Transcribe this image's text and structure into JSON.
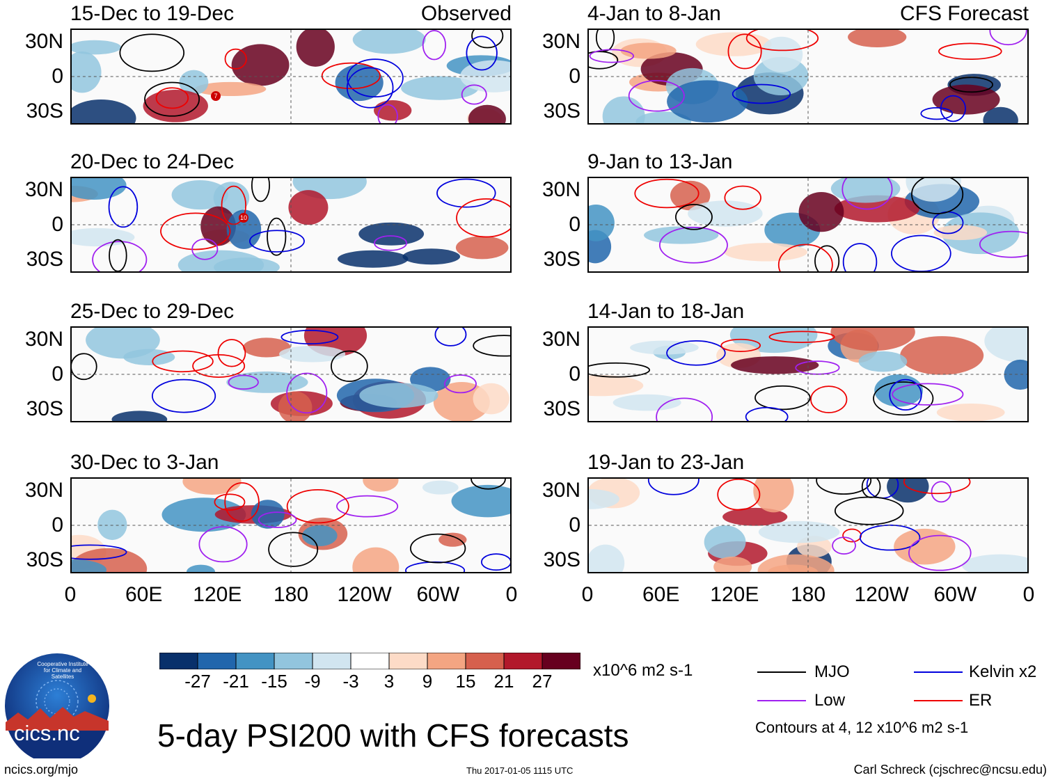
{
  "chart_data": {
    "type": "heatmap",
    "title": "5-day PSI200 with CFS forecasts",
    "variable": "PSI200",
    "colorbar": {
      "units": "x10^6 m2 s-1",
      "ticks": [
        "-27",
        "-21",
        "-15",
        "-9",
        "-3",
        "3",
        "9",
        "15",
        "21",
        "27"
      ],
      "colors": [
        "#08306b",
        "#2166ac",
        "#4393c3",
        "#92c5de",
        "#d1e5f0",
        "#ffffff",
        "#fddbc7",
        "#f4a582",
        "#d6604d",
        "#b2182b",
        "#67001f"
      ]
    },
    "x_axis": {
      "ticks": [
        "0",
        "60E",
        "120E",
        "180",
        "120W",
        "60W",
        "0"
      ]
    },
    "y_axis": {
      "ticks": [
        "30N",
        "0",
        "30S"
      ]
    },
    "columns": [
      "Observed",
      "CFS Forecast"
    ],
    "panels": [
      {
        "id": "obs-1",
        "title": "15-Dec to 19-Dec",
        "label": "Observed"
      },
      {
        "id": "obs-2",
        "title": "20-Dec to 24-Dec",
        "label": ""
      },
      {
        "id": "obs-3",
        "title": "25-Dec to 29-Dec",
        "label": ""
      },
      {
        "id": "obs-4",
        "title": "30-Dec to 3-Jan",
        "label": ""
      },
      {
        "id": "fcs-1",
        "title": "4-Jan to 8-Jan",
        "label": "CFS Forecast"
      },
      {
        "id": "fcs-2",
        "title": "9-Jan to 13-Jan",
        "label": ""
      },
      {
        "id": "fcs-3",
        "title": "14-Jan to 18-Jan",
        "label": ""
      },
      {
        "id": "fcs-4",
        "title": "19-Jan to 23-Jan",
        "label": ""
      }
    ],
    "legend": [
      {
        "name": "MJO",
        "color": "#000000"
      },
      {
        "name": "Kelvin x2",
        "color": "#0000dd"
      },
      {
        "name": "Low",
        "color": "#a020f0"
      },
      {
        "name": "ER",
        "color": "#ee0000"
      }
    ],
    "contour_note": "Contours at 4, 12 x10^6 m2 s-1",
    "storm_labels": [
      "7",
      "10"
    ]
  },
  "logo": {
    "text": "cics.nc",
    "arc_text": "Cooperative Institute for Climate and Satellites"
  },
  "footer": {
    "left": "ncics.org/mjo",
    "center": "Thu 2017-01-05 1115 UTC",
    "right": "Carl Schreck (cjschrec@ncsu.edu)"
  }
}
